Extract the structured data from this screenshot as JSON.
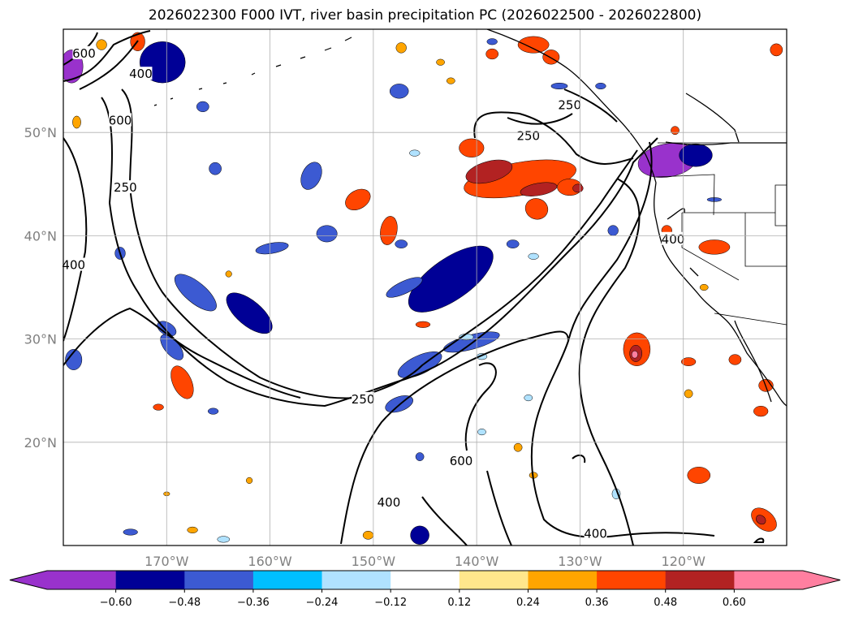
{
  "title": "2026022300 F000 IVT, river basin precipitation PC (2026022500 - 2026022800)",
  "chart_data": {
    "type": "map",
    "lat_ticks": [
      {
        "value": 50,
        "label": "50°N"
      },
      {
        "value": 40,
        "label": "40°N"
      },
      {
        "value": 30,
        "label": "30°N"
      },
      {
        "value": 20,
        "label": "20°N"
      }
    ],
    "lon_ticks": [
      {
        "value": -170,
        "label": "170°W"
      },
      {
        "value": -160,
        "label": "160°W"
      },
      {
        "value": -150,
        "label": "150°W"
      },
      {
        "value": -140,
        "label": "140°W"
      },
      {
        "value": -130,
        "label": "130°W"
      },
      {
        "value": -120,
        "label": "120°W"
      }
    ],
    "extent": {
      "lon_min": -180,
      "lon_max": -110,
      "lat_min": 10,
      "lat_max": 60
    },
    "ivt_contour_levels": [
      250,
      400,
      600
    ],
    "contour_labels": [
      {
        "text": "600",
        "lon": -178,
        "lat": 57.5
      },
      {
        "text": "400",
        "lon": -172.5,
        "lat": 55.5
      },
      {
        "text": "600",
        "lon": -174.5,
        "lat": 51
      },
      {
        "text": "250",
        "lon": -174,
        "lat": 44.5
      },
      {
        "text": "400",
        "lon": -179,
        "lat": 37
      },
      {
        "text": "250",
        "lon": -131,
        "lat": 52.5
      },
      {
        "text": "250",
        "lon": -135,
        "lat": 49.5
      },
      {
        "text": "400",
        "lon": -121,
        "lat": 39.5
      },
      {
        "text": "250",
        "lon": -151,
        "lat": 24
      },
      {
        "text": "600",
        "lon": -141.5,
        "lat": 18
      },
      {
        "text": "400",
        "lon": -148.5,
        "lat": 14
      },
      {
        "text": "400",
        "lon": -128.5,
        "lat": 11
      }
    ],
    "colorbar": {
      "levels": [
        -0.6,
        -0.48,
        -0.36,
        -0.24,
        -0.12,
        0.12,
        0.24,
        0.36,
        0.48,
        0.6
      ],
      "tick_labels": [
        "−0.60",
        "−0.48",
        "−0.36",
        "−0.24",
        "−0.12",
        "0.12",
        "0.24",
        "0.36",
        "0.48",
        "0.60"
      ],
      "colors": [
        "#9932cc",
        "#000096",
        "#3c5ad2",
        "#00bfff",
        "#b0e2ff",
        "#ffffff",
        "#ffe78c",
        "#ffa500",
        "#ff4500",
        "#b22222",
        "#ff7fa0"
      ],
      "extend": "both"
    },
    "pc_features": [
      {
        "lon": -121.5,
        "lat": 47.3,
        "rx": 2.9,
        "ry": 1.6,
        "value": -0.62,
        "rot": -10
      },
      {
        "lon": -118.8,
        "lat": 47.8,
        "rx": 1.6,
        "ry": 1.1,
        "value": -0.5,
        "rot": 0
      },
      {
        "lon": -170.4,
        "lat": 56.8,
        "rx": 2.2,
        "ry": 2.0,
        "value": -0.5,
        "rot": 0
      },
      {
        "lon": -179.2,
        "lat": 56.4,
        "rx": 1.1,
        "ry": 1.6,
        "value": -0.62,
        "rot": 0
      },
      {
        "lon": -142.5,
        "lat": 35.8,
        "rx": 4.8,
        "ry": 2.0,
        "value": -0.5,
        "rot": -35
      },
      {
        "lon": -145.5,
        "lat": 27.5,
        "rx": 2.3,
        "ry": 0.9,
        "value": -0.38,
        "rot": -25
      },
      {
        "lon": -140.5,
        "lat": 29.7,
        "rx": 2.8,
        "ry": 0.7,
        "value": -0.38,
        "rot": -15
      },
      {
        "lon": -167.2,
        "lat": 34.5,
        "rx": 2.5,
        "ry": 1.0,
        "value": -0.38,
        "rot": 40
      },
      {
        "lon": -162.0,
        "lat": 32.5,
        "rx": 2.7,
        "ry": 1.2,
        "value": -0.5,
        "rot": 40
      },
      {
        "lon": -169.5,
        "lat": 29.2,
        "rx": 1.5,
        "ry": 0.7,
        "value": -0.38,
        "rot": 50
      },
      {
        "lon": -179.0,
        "lat": 28.0,
        "rx": 0.8,
        "ry": 1.0,
        "value": -0.38,
        "rot": 0
      },
      {
        "lon": -156.0,
        "lat": 45.8,
        "rx": 0.9,
        "ry": 1.4,
        "value": -0.38,
        "rot": 25
      },
      {
        "lon": -154.5,
        "lat": 40.2,
        "rx": 1.0,
        "ry": 0.8,
        "value": -0.38,
        "rot": 0
      },
      {
        "lon": -159.8,
        "lat": 38.8,
        "rx": 1.6,
        "ry": 0.5,
        "value": -0.38,
        "rot": -10
      },
      {
        "lon": -147.0,
        "lat": 35.0,
        "rx": 1.9,
        "ry": 0.6,
        "value": -0.38,
        "rot": -25
      },
      {
        "lon": -147.3,
        "lat": 39.2,
        "rx": 0.6,
        "ry": 0.4,
        "value": -0.38,
        "rot": 0
      },
      {
        "lon": -136.5,
        "lat": 39.2,
        "rx": 0.6,
        "ry": 0.4,
        "value": -0.38,
        "rot": 0
      },
      {
        "lon": -165.3,
        "lat": 46.5,
        "rx": 0.6,
        "ry": 0.6,
        "value": -0.38,
        "rot": 0
      },
      {
        "lon": -147.5,
        "lat": 54.0,
        "rx": 0.9,
        "ry": 0.7,
        "value": -0.38,
        "rot": 0
      },
      {
        "lon": -166.5,
        "lat": 52.5,
        "rx": 0.6,
        "ry": 0.5,
        "value": -0.38,
        "rot": 0
      },
      {
        "lon": -174.5,
        "lat": 38.3,
        "rx": 0.5,
        "ry": 0.6,
        "value": -0.38,
        "rot": 0
      },
      {
        "lon": -165.5,
        "lat": 23.0,
        "rx": 0.5,
        "ry": 0.3,
        "value": -0.38,
        "rot": 0
      },
      {
        "lon": -147.5,
        "lat": 23.7,
        "rx": 1.4,
        "ry": 0.7,
        "value": -0.38,
        "rot": -20
      },
      {
        "lon": -145.5,
        "lat": 18.6,
        "rx": 0.4,
        "ry": 0.4,
        "value": -0.38,
        "rot": 0
      },
      {
        "lon": -145.5,
        "lat": 11.0,
        "rx": 0.9,
        "ry": 0.9,
        "value": -0.5,
        "rot": 0
      },
      {
        "lon": -128.0,
        "lat": 54.5,
        "rx": 0.5,
        "ry": 0.3,
        "value": -0.38,
        "rot": 0
      },
      {
        "lon": -126.8,
        "lat": 40.5,
        "rx": 0.5,
        "ry": 0.5,
        "value": -0.38,
        "rot": 0
      },
      {
        "lon": -170.0,
        "lat": 31.0,
        "rx": 1.0,
        "ry": 0.6,
        "value": -0.38,
        "rot": 30
      },
      {
        "lon": -173.5,
        "lat": 11.3,
        "rx": 0.7,
        "ry": 0.3,
        "value": -0.38,
        "rot": 0
      },
      {
        "lon": -132.0,
        "lat": 54.5,
        "rx": 0.8,
        "ry": 0.3,
        "value": -0.38,
        "rot": 0
      },
      {
        "lon": -117.0,
        "lat": 43.5,
        "rx": 0.7,
        "ry": 0.2,
        "value": -0.38,
        "rot": 0
      },
      {
        "lon": -138.5,
        "lat": 58.8,
        "rx": 0.5,
        "ry": 0.3,
        "value": -0.38,
        "rot": 0
      },
      {
        "lon": -146.0,
        "lat": 48.0,
        "rx": 0.5,
        "ry": 0.3,
        "value": -0.24,
        "rot": 0
      },
      {
        "lon": -135.0,
        "lat": 24.3,
        "rx": 0.4,
        "ry": 0.3,
        "value": -0.24,
        "rot": 0
      },
      {
        "lon": -139.5,
        "lat": 28.3,
        "rx": 0.5,
        "ry": 0.3,
        "value": -0.24,
        "rot": 0
      },
      {
        "lon": -126.5,
        "lat": 15.0,
        "rx": 0.4,
        "ry": 0.5,
        "value": -0.24,
        "rot": 0
      },
      {
        "lon": -139.5,
        "lat": 21.0,
        "rx": 0.4,
        "ry": 0.3,
        "value": -0.24,
        "rot": 0
      },
      {
        "lon": -164.5,
        "lat": 10.6,
        "rx": 0.6,
        "ry": 0.3,
        "value": -0.24,
        "rot": 0
      },
      {
        "lon": -134.5,
        "lat": 38.0,
        "rx": 0.5,
        "ry": 0.3,
        "value": -0.24,
        "rot": 0
      },
      {
        "lon": -141.0,
        "lat": 30.2,
        "rx": 0.7,
        "ry": 0.3,
        "value": -0.24,
        "rot": 0
      },
      {
        "lon": -142.5,
        "lat": 55.0,
        "rx": 0.4,
        "ry": 0.3,
        "value": 0.3,
        "rot": 0
      },
      {
        "lon": -135.8,
        "lat": 45.5,
        "rx": 5.5,
        "ry": 1.6,
        "value": 0.42,
        "rot": -10
      },
      {
        "lon": -138.8,
        "lat": 46.2,
        "rx": 2.3,
        "ry": 1.0,
        "value": 0.53,
        "rot": -15
      },
      {
        "lon": -134.0,
        "lat": 44.5,
        "rx": 1.8,
        "ry": 0.6,
        "value": 0.53,
        "rot": -10
      },
      {
        "lon": -131.0,
        "lat": 44.7,
        "rx": 1.2,
        "ry": 0.8,
        "value": 0.42,
        "rot": 0
      },
      {
        "lon": -130.2,
        "lat": 44.6,
        "rx": 0.5,
        "ry": 0.4,
        "value": 0.53,
        "rot": 0
      },
      {
        "lon": -134.2,
        "lat": 42.6,
        "rx": 1.1,
        "ry": 1.0,
        "value": 0.42,
        "rot": 20
      },
      {
        "lon": -140.5,
        "lat": 48.5,
        "rx": 1.2,
        "ry": 0.9,
        "value": 0.42,
        "rot": 0
      },
      {
        "lon": -151.5,
        "lat": 43.5,
        "rx": 1.3,
        "ry": 0.9,
        "value": 0.42,
        "rot": -30
      },
      {
        "lon": -148.5,
        "lat": 40.5,
        "rx": 0.8,
        "ry": 1.4,
        "value": 0.42,
        "rot": 10
      },
      {
        "lon": -124.5,
        "lat": 29.0,
        "rx": 1.3,
        "ry": 1.6,
        "value": 0.42,
        "rot": 0
      },
      {
        "lon": -124.6,
        "lat": 28.6,
        "rx": 0.6,
        "ry": 0.8,
        "value": 0.53,
        "rot": 0
      },
      {
        "lon": -124.7,
        "lat": 28.5,
        "rx": 0.3,
        "ry": 0.35,
        "value": 0.65,
        "rot": 0
      },
      {
        "lon": -168.5,
        "lat": 25.8,
        "rx": 0.9,
        "ry": 1.7,
        "value": 0.42,
        "rot": -25
      },
      {
        "lon": -118.5,
        "lat": 16.8,
        "rx": 1.1,
        "ry": 0.8,
        "value": 0.42,
        "rot": 0
      },
      {
        "lon": -112.2,
        "lat": 12.5,
        "rx": 1.4,
        "ry": 0.9,
        "value": 0.42,
        "rot": 40
      },
      {
        "lon": -112.5,
        "lat": 12.5,
        "rx": 0.5,
        "ry": 0.4,
        "value": 0.53,
        "rot": 40
      },
      {
        "lon": -117.0,
        "lat": 38.9,
        "rx": 1.5,
        "ry": 0.7,
        "value": 0.42,
        "rot": 0
      },
      {
        "lon": -172.8,
        "lat": 58.8,
        "rx": 0.7,
        "ry": 0.9,
        "value": 0.42,
        "rot": 0
      },
      {
        "lon": -134.5,
        "lat": 58.5,
        "rx": 1.5,
        "ry": 0.8,
        "value": 0.42,
        "rot": 0
      },
      {
        "lon": -132.8,
        "lat": 57.3,
        "rx": 0.8,
        "ry": 0.7,
        "value": 0.42,
        "rot": 0
      },
      {
        "lon": -138.5,
        "lat": 57.6,
        "rx": 0.6,
        "ry": 0.5,
        "value": 0.42,
        "rot": 0
      },
      {
        "lon": -112.0,
        "lat": 25.5,
        "rx": 0.7,
        "ry": 0.6,
        "value": 0.42,
        "rot": 0
      },
      {
        "lon": -112.5,
        "lat": 23.0,
        "rx": 0.7,
        "ry": 0.5,
        "value": 0.42,
        "rot": 0
      },
      {
        "lon": -115.0,
        "lat": 28.0,
        "rx": 0.6,
        "ry": 0.5,
        "value": 0.42,
        "rot": 0
      },
      {
        "lon": -119.5,
        "lat": 27.8,
        "rx": 0.7,
        "ry": 0.4,
        "value": 0.42,
        "rot": 0
      },
      {
        "lon": -121.6,
        "lat": 40.5,
        "rx": 0.5,
        "ry": 0.5,
        "value": 0.42,
        "rot": 0
      },
      {
        "lon": -145.2,
        "lat": 31.4,
        "rx": 0.7,
        "ry": 0.3,
        "value": 0.42,
        "rot": 0
      },
      {
        "lon": -170.8,
        "lat": 23.4,
        "rx": 0.5,
        "ry": 0.3,
        "value": 0.42,
        "rot": 0
      },
      {
        "lon": -119.5,
        "lat": 24.7,
        "rx": 0.4,
        "ry": 0.4,
        "value": 0.3,
        "rot": 0
      },
      {
        "lon": -120.8,
        "lat": 50.2,
        "rx": 0.4,
        "ry": 0.4,
        "value": 0.42,
        "rot": 0
      },
      {
        "lon": -162.0,
        "lat": 16.3,
        "rx": 0.3,
        "ry": 0.3,
        "value": 0.3,
        "rot": 0
      },
      {
        "lon": -134.5,
        "lat": 16.8,
        "rx": 0.4,
        "ry": 0.3,
        "value": 0.3,
        "rot": 0
      },
      {
        "lon": -136.0,
        "lat": 19.5,
        "rx": 0.4,
        "ry": 0.4,
        "value": 0.3,
        "rot": 0
      },
      {
        "lon": -143.5,
        "lat": 56.8,
        "rx": 0.4,
        "ry": 0.3,
        "value": 0.3,
        "rot": 0
      },
      {
        "lon": -164.0,
        "lat": 36.3,
        "rx": 0.3,
        "ry": 0.3,
        "value": 0.3,
        "rot": 0
      },
      {
        "lon": -147.3,
        "lat": 58.2,
        "rx": 0.5,
        "ry": 0.5,
        "value": 0.3,
        "rot": 0
      },
      {
        "lon": -176.3,
        "lat": 58.5,
        "rx": 0.5,
        "ry": 0.5,
        "value": 0.3,
        "rot": 0
      },
      {
        "lon": -178.7,
        "lat": 51.0,
        "rx": 0.4,
        "ry": 0.6,
        "value": 0.3,
        "rot": 0
      },
      {
        "lon": -118.0,
        "lat": 35.0,
        "rx": 0.4,
        "ry": 0.3,
        "value": 0.3,
        "rot": 0
      },
      {
        "lon": -167.5,
        "lat": 11.5,
        "rx": 0.5,
        "ry": 0.3,
        "value": 0.3,
        "rot": 0
      },
      {
        "lon": -150.5,
        "lat": 11.0,
        "rx": 0.5,
        "ry": 0.4,
        "value": 0.3,
        "rot": 0
      },
      {
        "lon": -170.0,
        "lat": 15.0,
        "rx": 0.3,
        "ry": 0.2,
        "value": 0.3,
        "rot": 0
      },
      {
        "lon": -111.0,
        "lat": 58.0,
        "rx": 0.6,
        "ry": 0.6,
        "value": 0.42,
        "rot": 0
      }
    ]
  }
}
